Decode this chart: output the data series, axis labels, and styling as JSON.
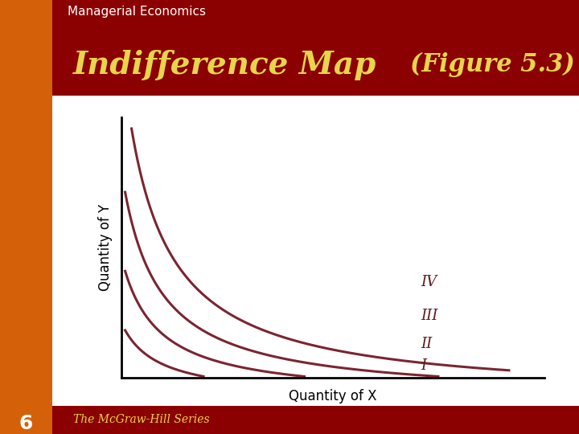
{
  "bg_outer": "#8b0000",
  "bg_left_strip": "#d4600a",
  "bg_header": "#8b0000",
  "bg_chart": "#ffffff",
  "header_text": "Managerial Economics",
  "header_color": "#ffffff",
  "title_text": "Indifference Map",
  "title_color": "#e8d44d",
  "figure_ref": "(Figure 5.3)",
  "figure_ref_color": "#e8d44d",
  "xlabel": "Quantity of X",
  "ylabel": "Quantity of Y",
  "label_color": "#000000",
  "curve_color": "#7b2530",
  "curve_linewidth": 2.2,
  "curve_labels": [
    "I",
    "II",
    "III",
    "IV"
  ],
  "curve_label_color": "#5a1a1a",
  "footer_text": "The McGraw-Hill Series",
  "footer_color": "#e8d44d",
  "page_number": "6",
  "page_number_color": "#ffffff",
  "curve_k_values": [
    3.5,
    6.5,
    10.5,
    16.0
  ],
  "xlim": [
    0,
    12
  ],
  "ylim": [
    0,
    12
  ]
}
